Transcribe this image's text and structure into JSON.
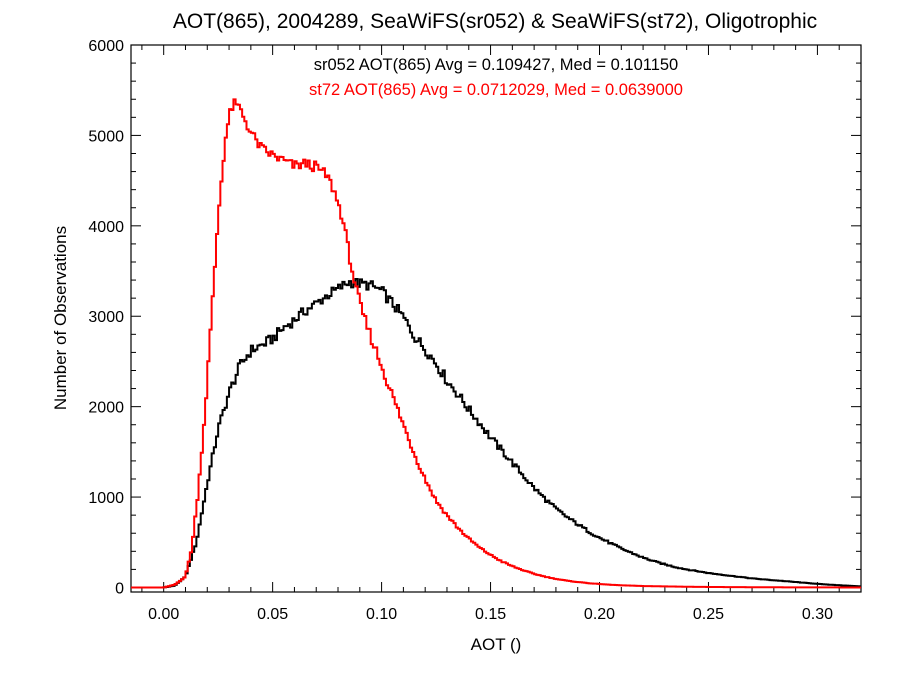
{
  "chart_data": {
    "type": "line",
    "step": true,
    "title": "AOT(865), 2004289, SeaWiFS(sr052) & SeaWiFS(st72), Oligotrophic",
    "xlabel": "AOT ()",
    "ylabel": "Number of Observations",
    "xlim": [
      -0.015,
      0.32
    ],
    "ylim": [
      -50,
      6000
    ],
    "x_ticks": [
      0.0,
      0.05,
      0.1,
      0.15,
      0.2,
      0.25,
      0.3
    ],
    "x_tick_labels": [
      "0.00",
      "0.05",
      "0.10",
      "0.15",
      "0.20",
      "0.25",
      "0.30"
    ],
    "y_ticks": [
      0,
      1000,
      2000,
      3000,
      4000,
      5000,
      6000
    ],
    "y_tick_labels": [
      "0",
      "1000",
      "2000",
      "3000",
      "4000",
      "5000",
      "6000"
    ],
    "grid": false,
    "annotations": [
      {
        "text": "sr052 AOT(865) Avg = 0.109427, Med = 0.101150",
        "color": "#000000"
      },
      {
        "text": "st72 AOT(865) Avg = 0.0712029, Med = 0.0639000",
        "color": "#ff0000"
      }
    ],
    "series": [
      {
        "name": "sr052",
        "color": "#000000",
        "points": [
          [
            -0.015,
            0
          ],
          [
            0.0,
            0
          ],
          [
            0.005,
            20
          ],
          [
            0.01,
            120
          ],
          [
            0.015,
            500
          ],
          [
            0.02,
            1150
          ],
          [
            0.025,
            1750
          ],
          [
            0.03,
            2150
          ],
          [
            0.035,
            2450
          ],
          [
            0.04,
            2620
          ],
          [
            0.045,
            2680
          ],
          [
            0.05,
            2750
          ],
          [
            0.055,
            2870
          ],
          [
            0.06,
            2960
          ],
          [
            0.065,
            3060
          ],
          [
            0.07,
            3140
          ],
          [
            0.075,
            3230
          ],
          [
            0.08,
            3300
          ],
          [
            0.085,
            3380
          ],
          [
            0.09,
            3360
          ],
          [
            0.095,
            3340
          ],
          [
            0.1,
            3280
          ],
          [
            0.105,
            3140
          ],
          [
            0.11,
            2990
          ],
          [
            0.115,
            2780
          ],
          [
            0.12,
            2640
          ],
          [
            0.125,
            2480
          ],
          [
            0.13,
            2290
          ],
          [
            0.135,
            2140
          ],
          [
            0.14,
            1970
          ],
          [
            0.145,
            1820
          ],
          [
            0.15,
            1660
          ],
          [
            0.155,
            1520
          ],
          [
            0.16,
            1380
          ],
          [
            0.165,
            1240
          ],
          [
            0.17,
            1100
          ],
          [
            0.175,
            980
          ],
          [
            0.18,
            870
          ],
          [
            0.185,
            780
          ],
          [
            0.19,
            700
          ],
          [
            0.195,
            620
          ],
          [
            0.2,
            550
          ],
          [
            0.205,
            490
          ],
          [
            0.21,
            430
          ],
          [
            0.215,
            380
          ],
          [
            0.22,
            330
          ],
          [
            0.225,
            290
          ],
          [
            0.23,
            255
          ],
          [
            0.235,
            225
          ],
          [
            0.24,
            200
          ],
          [
            0.245,
            180
          ],
          [
            0.25,
            160
          ],
          [
            0.255,
            145
          ],
          [
            0.26,
            130
          ],
          [
            0.265,
            115
          ],
          [
            0.27,
            100
          ],
          [
            0.275,
            90
          ],
          [
            0.28,
            80
          ],
          [
            0.285,
            70
          ],
          [
            0.29,
            60
          ],
          [
            0.295,
            50
          ],
          [
            0.3,
            40
          ],
          [
            0.305,
            32
          ],
          [
            0.31,
            25
          ],
          [
            0.315,
            18
          ],
          [
            0.32,
            12
          ]
        ]
      },
      {
        "name": "st72",
        "color": "#ff0000",
        "points": [
          [
            -0.015,
            0
          ],
          [
            0.0,
            0
          ],
          [
            0.005,
            30
          ],
          [
            0.01,
            120
          ],
          [
            0.013,
            450
          ],
          [
            0.016,
            1100
          ],
          [
            0.019,
            1950
          ],
          [
            0.022,
            3000
          ],
          [
            0.025,
            4100
          ],
          [
            0.028,
            4900
          ],
          [
            0.03,
            5200
          ],
          [
            0.032,
            5350
          ],
          [
            0.035,
            5300
          ],
          [
            0.04,
            5030
          ],
          [
            0.045,
            4850
          ],
          [
            0.05,
            4780
          ],
          [
            0.055,
            4720
          ],
          [
            0.06,
            4660
          ],
          [
            0.065,
            4690
          ],
          [
            0.07,
            4650
          ],
          [
            0.075,
            4550
          ],
          [
            0.078,
            4400
          ],
          [
            0.082,
            4100
          ],
          [
            0.085,
            3700
          ],
          [
            0.088,
            3330
          ],
          [
            0.091,
            3050
          ],
          [
            0.095,
            2780
          ],
          [
            0.1,
            2450
          ],
          [
            0.105,
            2120
          ],
          [
            0.11,
            1800
          ],
          [
            0.115,
            1480
          ],
          [
            0.12,
            1200
          ],
          [
            0.125,
            960
          ],
          [
            0.13,
            800
          ],
          [
            0.135,
            660
          ],
          [
            0.14,
            540
          ],
          [
            0.145,
            440
          ],
          [
            0.15,
            360
          ],
          [
            0.155,
            290
          ],
          [
            0.16,
            235
          ],
          [
            0.165,
            190
          ],
          [
            0.17,
            150
          ],
          [
            0.175,
            120
          ],
          [
            0.18,
            95
          ],
          [
            0.185,
            75
          ],
          [
            0.19,
            60
          ],
          [
            0.195,
            48
          ],
          [
            0.2,
            38
          ],
          [
            0.205,
            30
          ],
          [
            0.21,
            24
          ],
          [
            0.215,
            20
          ],
          [
            0.22,
            16
          ],
          [
            0.23,
            12
          ],
          [
            0.24,
            8
          ],
          [
            0.25,
            6
          ],
          [
            0.26,
            4
          ],
          [
            0.27,
            3
          ],
          [
            0.28,
            2
          ],
          [
            0.3,
            1
          ],
          [
            0.32,
            0
          ]
        ]
      }
    ]
  }
}
